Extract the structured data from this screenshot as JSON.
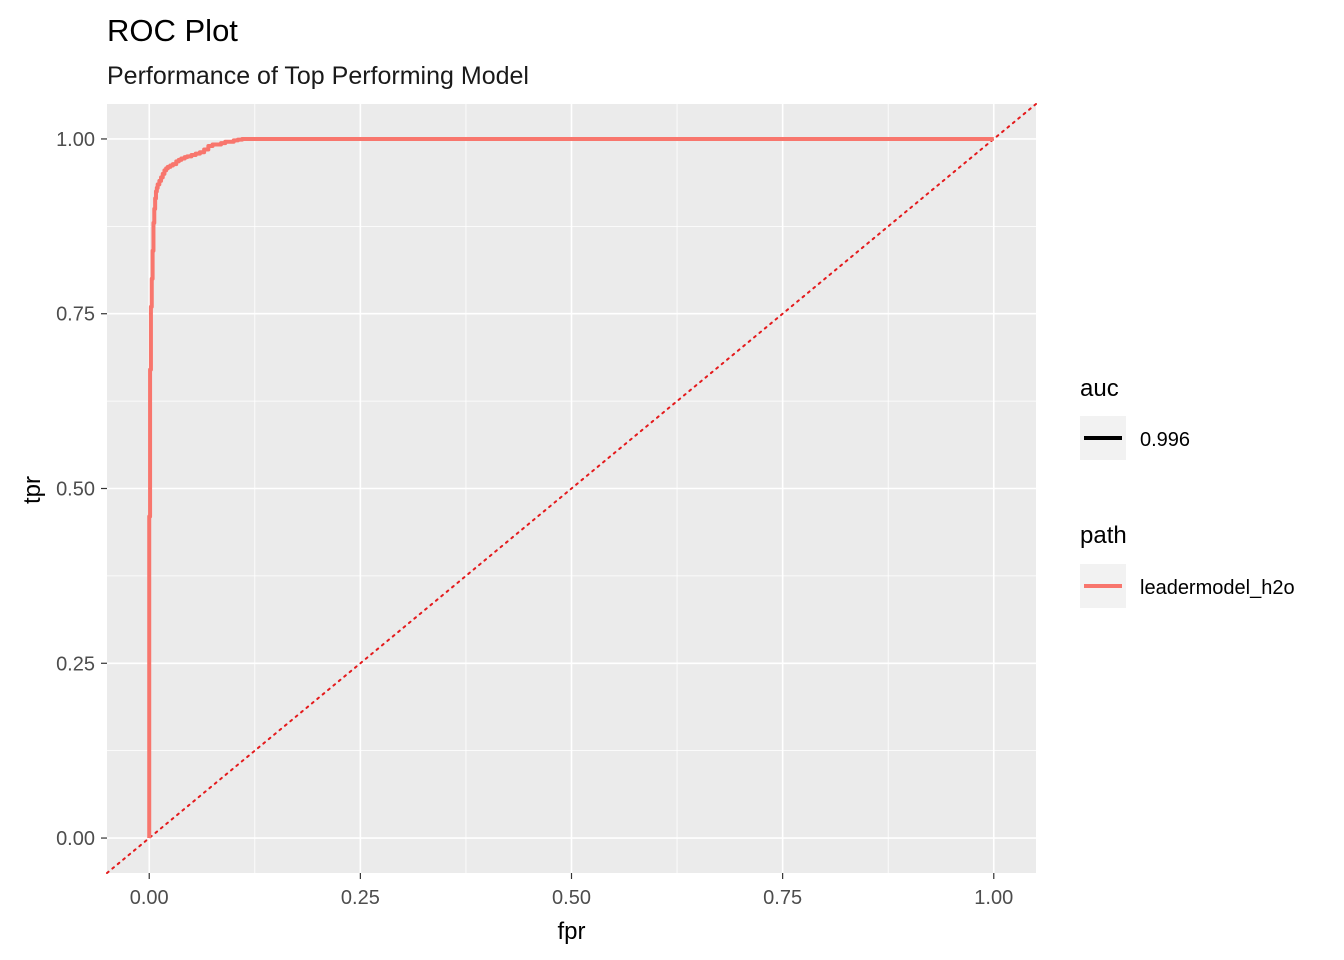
{
  "chart_data": {
    "type": "line",
    "title": "ROC Plot",
    "subtitle": "Performance of Top Performing Model",
    "xlabel": "fpr",
    "ylabel": "tpr",
    "xlim": [
      -0.05,
      1.05
    ],
    "ylim": [
      -0.05,
      1.05
    ],
    "x_ticks": [
      "0.00",
      "0.25",
      "0.50",
      "0.75",
      "1.00"
    ],
    "y_ticks": [
      "0.00",
      "0.25",
      "0.50",
      "0.75",
      "1.00"
    ],
    "x_tick_values": [
      0,
      0.25,
      0.5,
      0.75,
      1
    ],
    "y_tick_values": [
      0,
      0.25,
      0.5,
      0.75,
      1
    ],
    "grid": true,
    "legend_position": "right",
    "colors": {
      "panel_background": "#ebebeb",
      "grid": "#ffffff",
      "series": "#f8766d",
      "reference_line": "#e41a1c",
      "auc_key": "#000000",
      "legend_key_background": "#f2f2f2"
    },
    "legends": [
      {
        "title": "auc",
        "entries": [
          {
            "label": "0.996",
            "color": "#000000"
          }
        ]
      },
      {
        "title": "path",
        "entries": [
          {
            "label": "leadermodel_h2o",
            "color": "#f8766d"
          }
        ]
      }
    ],
    "reference_line": {
      "x": [
        -0.05,
        1.05
      ],
      "y": [
        -0.05,
        1.05
      ],
      "style": "dotted"
    },
    "series": [
      {
        "name": "leadermodel_h2o",
        "x": [
          0.0,
          0.0,
          0.001,
          0.001,
          0.002,
          0.002,
          0.003,
          0.003,
          0.004,
          0.004,
          0.005,
          0.005,
          0.006,
          0.007,
          0.008,
          0.009,
          0.01,
          0.012,
          0.014,
          0.016,
          0.018,
          0.02,
          0.022,
          0.025,
          0.028,
          0.032,
          0.035,
          0.038,
          0.042,
          0.045,
          0.05,
          0.055,
          0.06,
          0.065,
          0.07,
          0.075,
          0.085,
          0.09,
          0.1,
          0.105,
          0.11,
          0.2,
          0.4,
          0.6,
          0.8,
          1.0
        ],
        "y": [
          0.0,
          0.46,
          0.47,
          0.67,
          0.68,
          0.76,
          0.77,
          0.8,
          0.81,
          0.84,
          0.85,
          0.88,
          0.9,
          0.915,
          0.925,
          0.93,
          0.935,
          0.94,
          0.945,
          0.95,
          0.955,
          0.958,
          0.96,
          0.962,
          0.964,
          0.968,
          0.97,
          0.972,
          0.974,
          0.975,
          0.977,
          0.979,
          0.981,
          0.985,
          0.99,
          0.992,
          0.994,
          0.996,
          0.998,
          0.999,
          1.0,
          1.0,
          1.0,
          1.0,
          1.0,
          1.0
        ]
      }
    ]
  }
}
